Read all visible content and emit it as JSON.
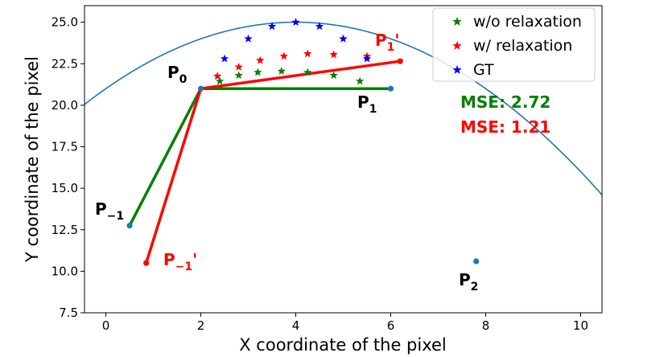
{
  "chart_data": {
    "type": "line",
    "title": "",
    "xlabel": "X coordinate of the pixel",
    "ylabel": "Y coordinate of the pixel",
    "xlim": [
      -0.45,
      10.45
    ],
    "ylim": [
      7.5,
      26.0
    ],
    "xticks": [
      0,
      2,
      4,
      6,
      8,
      10
    ],
    "yticks": [
      7.5,
      10.0,
      12.5,
      15.0,
      17.5,
      20.0,
      22.5,
      25.0
    ],
    "xtick_labels": [
      "0",
      "2",
      "4",
      "6",
      "8",
      "10"
    ],
    "ytick_labels": [
      "7.5",
      "10.0",
      "12.5",
      "15.0",
      "17.5",
      "20.0",
      "22.5",
      "25.0"
    ],
    "grid": false,
    "legend_position": "top-right",
    "curve": {
      "name": "parabola",
      "equation": "y = 25 - 0.25*(x-4)^2",
      "color": "#1f77b4",
      "x_range": [
        -0.5,
        10.5
      ]
    },
    "control_points": [
      {
        "id": "P_-1",
        "label": "P",
        "sub": "−1",
        "prime": "",
        "x": 0.5,
        "y": 12.75,
        "color": "#1f77b4",
        "text_color": "#000000"
      },
      {
        "id": "P_0",
        "label": "P",
        "sub": "0",
        "prime": "",
        "x": 2.0,
        "y": 21.0,
        "color": "#1f77b4",
        "text_color": "#000000"
      },
      {
        "id": "P_1",
        "label": "P",
        "sub": "1",
        "prime": "",
        "x": 6.0,
        "y": 21.0,
        "color": "#1f77b4",
        "text_color": "#000000"
      },
      {
        "id": "P_2",
        "label": "P",
        "sub": "2",
        "prime": "",
        "x": 7.8,
        "y": 10.6,
        "color": "#1f77b4",
        "text_color": "#000000"
      },
      {
        "id": "P_-1_prime",
        "label": "P",
        "sub": "−1",
        "prime": "'",
        "x": 0.85,
        "y": 10.5,
        "color": "#ff0000",
        "text_color": "#ff0000"
      },
      {
        "id": "P_1_prime",
        "label": "P",
        "sub": "1",
        "prime": "'",
        "x": 6.2,
        "y": 22.65,
        "color": "#ff0000",
        "text_color": "#ff0000"
      }
    ],
    "segments": [
      {
        "name": "green-segment-left",
        "color": "#008000",
        "from": [
          0.5,
          12.75
        ],
        "to": [
          2.0,
          21.0
        ]
      },
      {
        "name": "green-segment-top",
        "color": "#008000",
        "from": [
          2.0,
          21.0
        ],
        "to": [
          6.0,
          21.0
        ]
      },
      {
        "name": "red-segment-left",
        "color": "#ff0000",
        "from": [
          0.85,
          10.5
        ],
        "to": [
          2.0,
          21.0
        ]
      },
      {
        "name": "red-segment-top",
        "color": "#ff0000",
        "from": [
          2.0,
          21.0
        ],
        "to": [
          6.2,
          22.65
        ]
      }
    ],
    "series": [
      {
        "name": "w/o relaxation",
        "color": "#008000",
        "marker": "star",
        "x": [
          2.4,
          2.8,
          3.2,
          3.7,
          4.25,
          4.8,
          5.35
        ],
        "y": [
          21.45,
          21.8,
          21.98,
          22.05,
          21.98,
          21.8,
          21.45
        ]
      },
      {
        "name": "w/ relaxation",
        "color": "#ff0000",
        "marker": "star",
        "x": [
          2.35,
          2.8,
          3.25,
          3.75,
          4.25,
          4.8,
          5.5
        ],
        "y": [
          21.75,
          22.3,
          22.7,
          22.95,
          23.1,
          23.05,
          22.95
        ]
      },
      {
        "name": "GT",
        "color": "#0000ff",
        "marker": "star",
        "x": [
          2.5,
          3.0,
          3.5,
          4.0,
          4.5,
          5.0,
          5.5
        ],
        "y": [
          22.8,
          24.0,
          24.75,
          25.0,
          24.75,
          24.0,
          22.8
        ]
      }
    ],
    "annotations": [
      {
        "name": "mse-without-relaxation",
        "text": "MSE: 2.72",
        "color": "#008000"
      },
      {
        "name": "mse-with-relaxation",
        "text": "MSE: 1.21",
        "color": "#ff0000"
      }
    ]
  }
}
